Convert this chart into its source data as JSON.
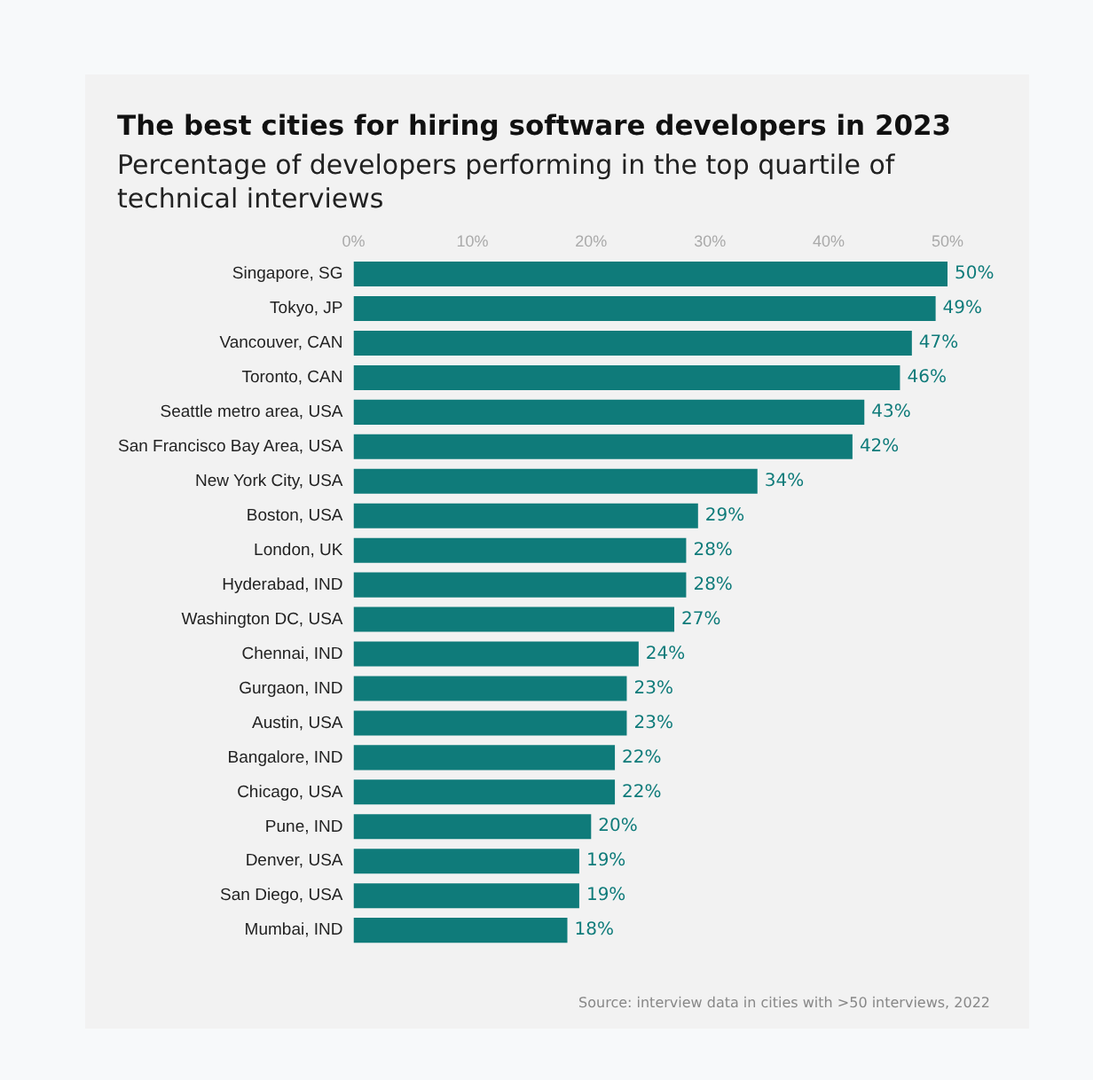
{
  "chart_data": {
    "type": "bar",
    "orientation": "horizontal",
    "title": "The best cities for hiring software developers in 2023",
    "subtitle": "Percentage of developers performing in the top quartile of technical interviews",
    "categories": [
      "Singapore, SG",
      "Tokyo, JP",
      "Vancouver, CAN",
      "Toronto, CAN",
      "Seattle metro area, USA",
      "San Francisco Bay Area, USA",
      "New York City, USA",
      "Boston, USA",
      "London, UK",
      "Hyderabad, IND",
      "Washington DC, USA",
      "Chennai, IND",
      "Gurgaon, IND",
      "Austin, USA",
      "Bangalore, IND",
      "Chicago, USA",
      "Pune, IND",
      "Denver, USA",
      "San Diego, USA",
      "Mumbai, IND"
    ],
    "values": [
      50,
      49,
      47,
      46,
      43,
      42,
      34,
      29,
      28,
      28,
      27,
      24,
      23,
      23,
      22,
      22,
      20,
      19,
      19,
      18
    ],
    "value_labels": [
      "50%",
      "49%",
      "47%",
      "46%",
      "43%",
      "42%",
      "34%",
      "29%",
      "28%",
      "28%",
      "27%",
      "24%",
      "23%",
      "23%",
      "22%",
      "22%",
      "20%",
      "19%",
      "19%",
      "18%"
    ],
    "color": "#0f7b7a",
    "xlim": [
      0,
      50
    ],
    "xticks": [
      {
        "value": 0,
        "label": "0%"
      },
      {
        "value": 10,
        "label": "10%"
      },
      {
        "value": 20,
        "label": "20%"
      },
      {
        "value": 30,
        "label": "30%"
      },
      {
        "value": 40,
        "label": "40%"
      },
      {
        "value": 50,
        "label": "50%"
      }
    ],
    "grid": false,
    "legend": false,
    "annotations": [
      "Source: interview data in cities with >50 interviews, 2022"
    ]
  }
}
